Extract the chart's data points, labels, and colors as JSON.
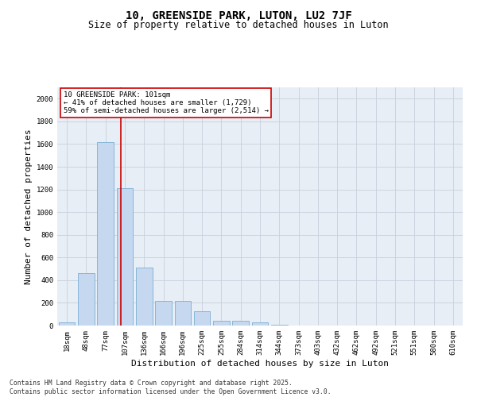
{
  "title1": "10, GREENSIDE PARK, LUTON, LU2 7JF",
  "title2": "Size of property relative to detached houses in Luton",
  "xlabel": "Distribution of detached houses by size in Luton",
  "ylabel": "Number of detached properties",
  "categories": [
    "18sqm",
    "48sqm",
    "77sqm",
    "107sqm",
    "136sqm",
    "166sqm",
    "196sqm",
    "225sqm",
    "255sqm",
    "284sqm",
    "314sqm",
    "344sqm",
    "373sqm",
    "403sqm",
    "432sqm",
    "462sqm",
    "492sqm",
    "521sqm",
    "551sqm",
    "580sqm",
    "610sqm"
  ],
  "values": [
    30,
    460,
    1620,
    1210,
    510,
    215,
    215,
    125,
    45,
    45,
    25,
    10,
    0,
    0,
    0,
    0,
    0,
    0,
    0,
    0,
    0
  ],
  "bar_color": "#c5d8f0",
  "bar_edge_color": "#7bafd4",
  "grid_color": "#c8d0dc",
  "background_color": "#e8eef5",
  "vline_color": "#cc0000",
  "vline_x_index": 2.78,
  "annotation_text": "10 GREENSIDE PARK: 101sqm\n← 41% of detached houses are smaller (1,729)\n59% of semi-detached houses are larger (2,514) →",
  "annotation_box_color": "#cc0000",
  "ylim": [
    0,
    2100
  ],
  "yticks": [
    0,
    200,
    400,
    600,
    800,
    1000,
    1200,
    1400,
    1600,
    1800,
    2000
  ],
  "footer1": "Contains HM Land Registry data © Crown copyright and database right 2025.",
  "footer2": "Contains public sector information licensed under the Open Government Licence v3.0.",
  "title_fontsize": 10,
  "subtitle_fontsize": 8.5,
  "tick_fontsize": 6.5,
  "label_fontsize": 8,
  "footer_fontsize": 5.8
}
